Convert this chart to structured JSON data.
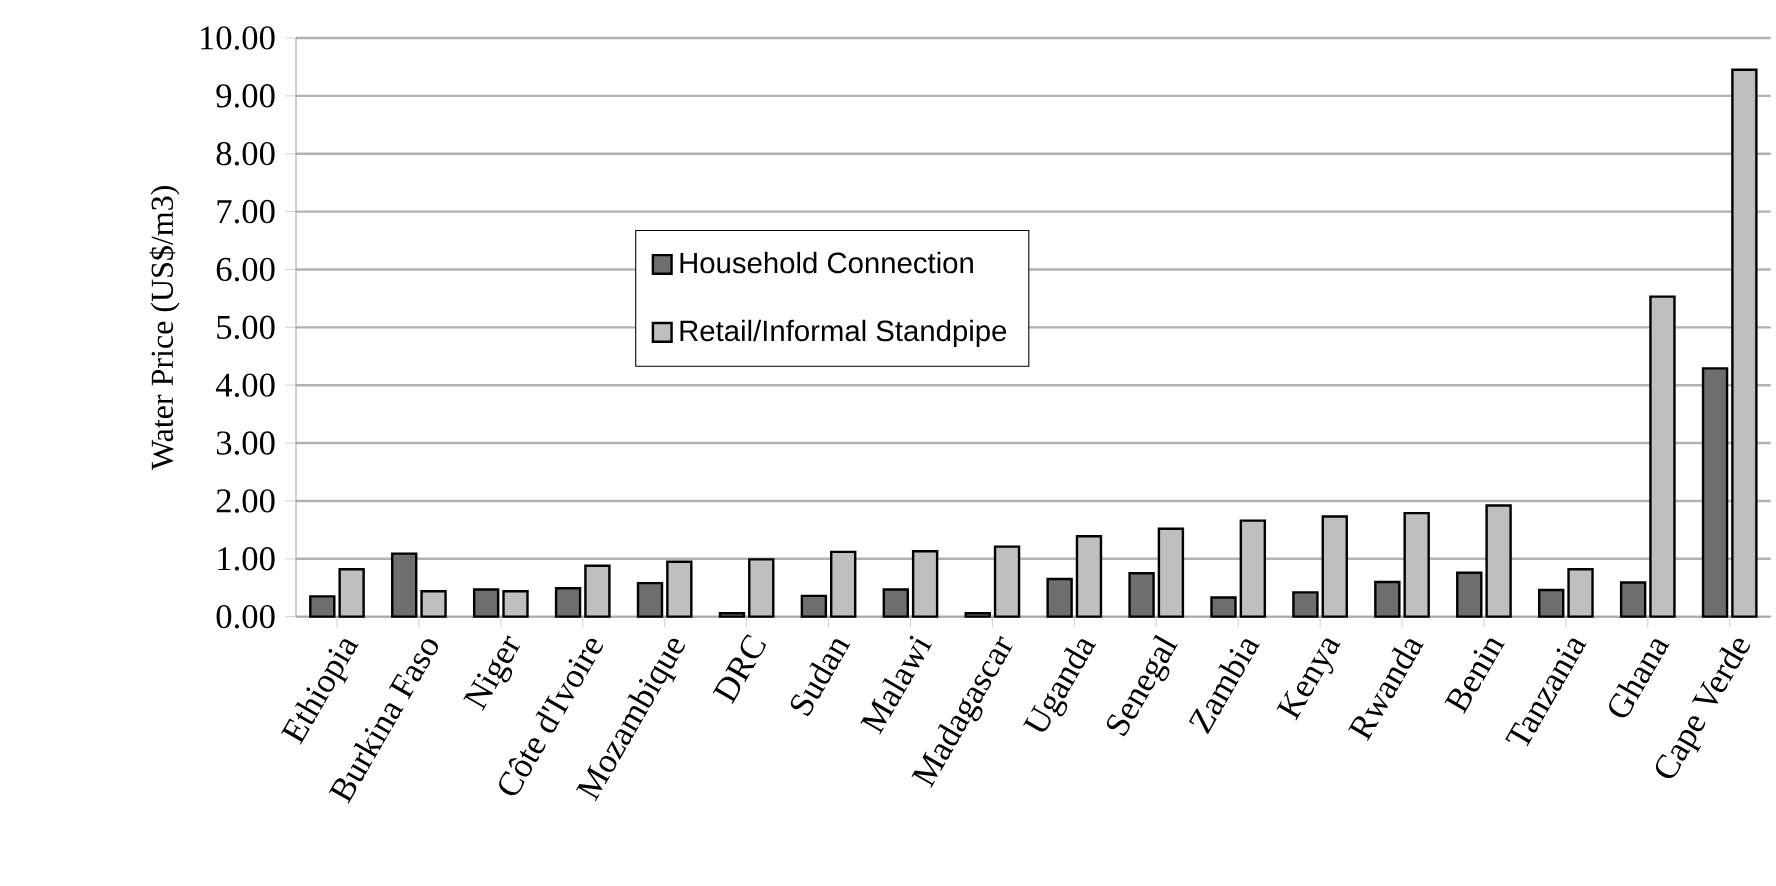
{
  "chart_data": {
    "type": "bar",
    "ylabel": "Water Price (US$/m3)",
    "categories": [
      "Ethiopia",
      "Burkina Faso",
      "Niger",
      "Côte d'Ivoire",
      "Mozambique",
      "DRC",
      "Sudan",
      "Malawi",
      "Madagascar",
      "Uganda",
      "Senegal",
      "Zambia",
      "Kenya",
      "Rwanda",
      "Benin",
      "Tanzania",
      "Ghana",
      "Cape Verde"
    ],
    "series": [
      {
        "name": "Household Connection",
        "color": "#6e6e6e",
        "values": [
          0.35,
          1.09,
          0.47,
          0.49,
          0.58,
          0.06,
          0.36,
          0.47,
          0.06,
          0.65,
          0.75,
          0.33,
          0.42,
          0.6,
          0.76,
          0.46,
          0.59,
          4.29
        ]
      },
      {
        "name": "Retail/Informal Standpipe",
        "color": "#bfbfbf",
        "values": [
          0.82,
          0.44,
          0.44,
          0.88,
          0.95,
          0.99,
          1.12,
          1.13,
          1.21,
          1.39,
          1.52,
          1.66,
          1.73,
          1.79,
          1.92,
          0.82,
          5.53,
          9.45
        ]
      }
    ],
    "ylim": [
      0,
      10
    ],
    "yticks": [
      {
        "value": 0,
        "label": "0.00"
      },
      {
        "value": 1,
        "label": "1.00"
      },
      {
        "value": 2,
        "label": "2.00"
      },
      {
        "value": 3,
        "label": "3.00"
      },
      {
        "value": 4,
        "label": "4.00"
      },
      {
        "value": 5,
        "label": "5.00"
      },
      {
        "value": 6,
        "label": "6.00"
      },
      {
        "value": 7,
        "label": "7.00"
      },
      {
        "value": 8,
        "label": "8.00"
      },
      {
        "value": 9,
        "label": "9.00"
      },
      {
        "value": 10,
        "label": "10.00"
      }
    ],
    "grid": "y",
    "legend": "center"
  }
}
